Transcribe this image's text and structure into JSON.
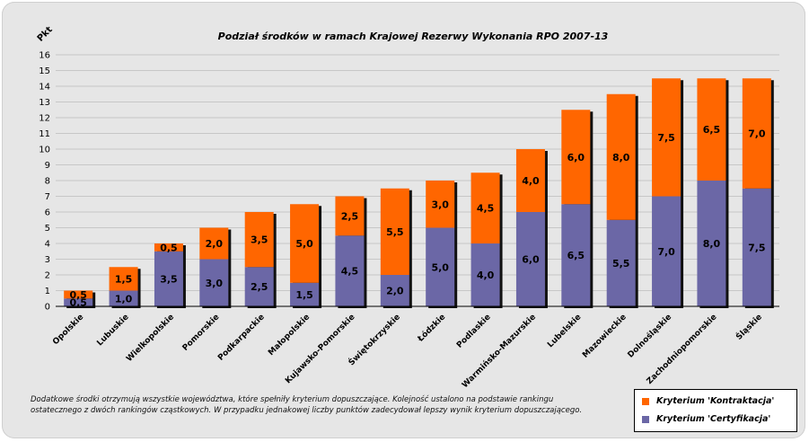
{
  "chart_data": {
    "type": "bar",
    "stacked": true,
    "title": "Podział środków w ramach Krajowej Rezerwy Wykonania RPO 2007-13",
    "ylabel": "Pkt",
    "ylim": [
      0,
      16
    ],
    "yticks": [
      0,
      1,
      2,
      3,
      4,
      5,
      6,
      7,
      8,
      9,
      10,
      11,
      12,
      13,
      14,
      15,
      16
    ],
    "grid": true,
    "legend_position": "bottom-right",
    "categories": [
      "Opolskie",
      "Lubuskie",
      "Wielkopolskie",
      "Pomorskie",
      "Podkarpackie",
      "Małopolskie",
      "Kujawsko-Pomorskie",
      "Świętokrzyskie",
      "Łódzkie",
      "Podlaskie",
      "Warmińsko-Mazurskie",
      "Lubelskie",
      "Mazowieckie",
      "Dolnośląskie",
      "Zachodniopomorskie",
      "Śląskie"
    ],
    "series": [
      {
        "name": "Kryterium 'Certyfikacja'",
        "color": "#6b67a6",
        "values": [
          0.5,
          1.0,
          3.5,
          3.0,
          2.5,
          1.5,
          4.5,
          2.0,
          5.0,
          4.0,
          6.0,
          6.5,
          5.5,
          7.0,
          8.0,
          7.5
        ],
        "labels": [
          "0,5",
          "1,0",
          "3,5",
          "3,0",
          "2,5",
          "1,5",
          "4,5",
          "2,0",
          "5,0",
          "4,0",
          "6,0",
          "6,5",
          "5,5",
          "7,0",
          "8,0",
          "7,5"
        ]
      },
      {
        "name": "Kryterium 'Kontraktacja'",
        "color": "#ff6600",
        "values": [
          0.5,
          1.5,
          0.5,
          2.0,
          3.5,
          5.0,
          2.5,
          5.5,
          3.0,
          4.5,
          4.0,
          6.0,
          8.0,
          7.5,
          6.5,
          7.0
        ],
        "labels": [
          "0,5",
          "1,5",
          "0,5",
          "2,0",
          "3,5",
          "5,0",
          "2,5",
          "5,5",
          "3,0",
          "4,5",
          "4,0",
          "6,0",
          "8,0",
          "7,5",
          "6,5",
          "7,0"
        ]
      }
    ]
  },
  "note": "Dodatkowe środki otrzymują wszystkie województwa, które spełniły kryterium dopuszczające. Kolejność ustalono na podstawie rankingu ostatecznego z dwóch rankingów cząstkowych. W przypadku jednakowej liczby punktów zadecydował lepszy wynik kryterium dopuszczającego.",
  "legend": {
    "kontraktacja": "Kryterium 'Kontraktacja'",
    "certyfikacja": "Kryterium 'Certyfikacja'"
  }
}
